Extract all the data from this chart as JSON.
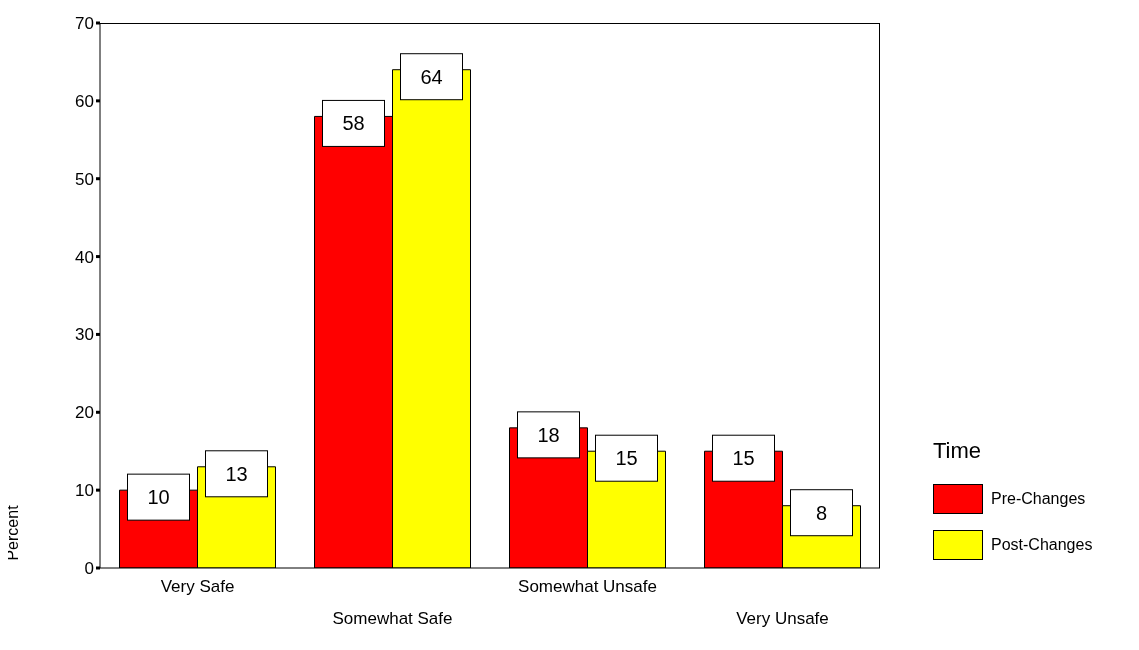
{
  "chart_data": {
    "type": "bar",
    "ylabel": "Percent",
    "legend_title": "Time",
    "categories": [
      "Very Safe",
      "Somewhat Safe",
      "Somewhat Unsafe",
      "Very Unsafe"
    ],
    "series": [
      {
        "name": "Pre-Changes",
        "color": "#ff0000",
        "values": [
          10,
          58,
          18,
          15
        ]
      },
      {
        "name": "Post-Changes",
        "color": "#ffff00",
        "values": [
          13,
          64,
          15,
          8
        ]
      }
    ],
    "ylim": [
      0,
      70
    ],
    "yticks": [
      0,
      10,
      20,
      30,
      40,
      50,
      60,
      70
    ],
    "legend": "right",
    "data_labels": true
  }
}
